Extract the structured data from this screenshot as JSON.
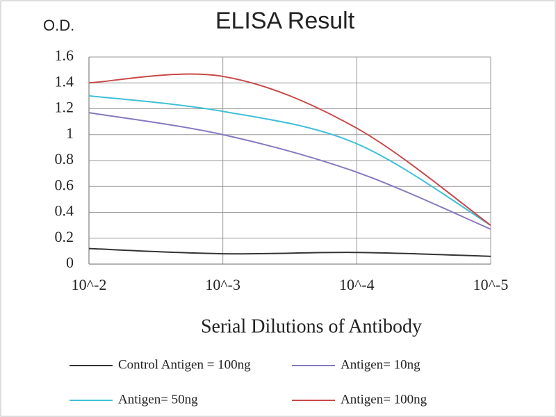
{
  "chart_data": {
    "type": "line",
    "title": "ELISA Result",
    "y_label": "O.D.",
    "x_label": "Serial Dilutions  of Antibody",
    "categories": [
      "10^-2",
      "10^-3",
      "10^-4",
      "10^-5"
    ],
    "series": [
      {
        "name": "Control Antigen = 100ng",
        "color": "#333333",
        "values": [
          0.12,
          0.08,
          0.09,
          0.06
        ]
      },
      {
        "name": "Antigen= 10ng",
        "color": "#8878c0",
        "values": [
          1.17,
          1.0,
          0.71,
          0.27
        ]
      },
      {
        "name": "Antigen= 50ng",
        "color": "#40c0d8",
        "values": [
          1.3,
          1.18,
          0.93,
          0.3
        ]
      },
      {
        "name": "Antigen= 100ng",
        "color": "#c84848",
        "values": [
          1.4,
          1.45,
          1.05,
          0.3
        ]
      }
    ],
    "ylim": [
      0,
      1.6
    ],
    "yticks": [
      0,
      0.2,
      0.4,
      0.6,
      0.8,
      1,
      1.2,
      1.4,
      1.6
    ],
    "grid": true
  }
}
